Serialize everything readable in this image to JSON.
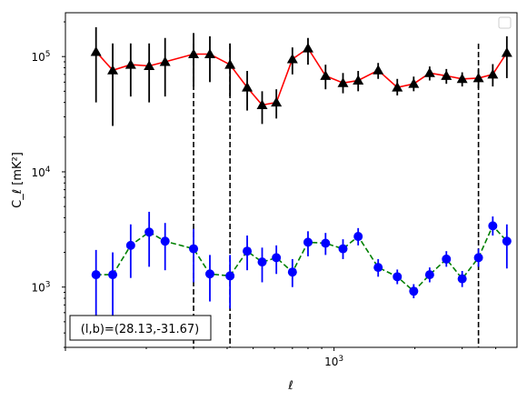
{
  "chart_data": {
    "type": "scatter",
    "xscale": "log",
    "yscale": "log",
    "xlim": [
      100,
      4800
    ],
    "ylim": [
      300,
      240000
    ],
    "xlabel": "ℓ",
    "ylabel": "C_ℓ  [mK²]",
    "x_tick_labels": [
      {
        "value": 1000,
        "base": "10",
        "exp": "3"
      }
    ],
    "y_tick_labels": [
      {
        "value": 1000,
        "base": "10",
        "exp": "3"
      },
      {
        "value": 10000,
        "base": "10",
        "exp": "4"
      },
      {
        "value": 100000,
        "base": "10",
        "exp": "5"
      }
    ],
    "annotation": "(l,b)=(28.13,-31.67)",
    "legend": "empty box, upper right",
    "vlines": [
      300,
      410,
      3450
    ],
    "series": [
      {
        "marker": "triangle",
        "marker_color": "#000000",
        "line_color": "#ff0000",
        "line_style": "solid",
        "points": [
          {
            "x": 130,
            "y": 110000,
            "lo": 40000,
            "hi": 180000
          },
          {
            "x": 150,
            "y": 76000,
            "lo": 25000,
            "hi": 130000
          },
          {
            "x": 175,
            "y": 85000,
            "lo": 45000,
            "hi": 130000
          },
          {
            "x": 205,
            "y": 83000,
            "lo": 40000,
            "hi": 130000
          },
          {
            "x": 235,
            "y": 90000,
            "lo": 45000,
            "hi": 145000
          },
          {
            "x": 300,
            "y": 105000,
            "lo": 55000,
            "hi": 160000
          },
          {
            "x": 345,
            "y": 105000,
            "lo": 60000,
            "hi": 150000
          },
          {
            "x": 410,
            "y": 85000,
            "lo": 45000,
            "hi": 130000
          },
          {
            "x": 475,
            "y": 54000,
            "lo": 34000,
            "hi": 75000
          },
          {
            "x": 540,
            "y": 38000,
            "lo": 26000,
            "hi": 50000
          },
          {
            "x": 610,
            "y": 40000,
            "lo": 29000,
            "hi": 52000
          },
          {
            "x": 700,
            "y": 95000,
            "lo": 70000,
            "hi": 120000
          },
          {
            "x": 800,
            "y": 118000,
            "lo": 85000,
            "hi": 145000
          },
          {
            "x": 930,
            "y": 68000,
            "lo": 52000,
            "hi": 85000
          },
          {
            "x": 1080,
            "y": 59000,
            "lo": 48000,
            "hi": 72000
          },
          {
            "x": 1230,
            "y": 62000,
            "lo": 50000,
            "hi": 75000
          },
          {
            "x": 1460,
            "y": 76000,
            "lo": 64000,
            "hi": 88000
          },
          {
            "x": 1720,
            "y": 54000,
            "lo": 46000,
            "hi": 64000
          },
          {
            "x": 1980,
            "y": 58000,
            "lo": 50000,
            "hi": 67000
          },
          {
            "x": 2270,
            "y": 72000,
            "lo": 62000,
            "hi": 82000
          },
          {
            "x": 2620,
            "y": 68000,
            "lo": 58000,
            "hi": 78000
          },
          {
            "x": 3000,
            "y": 64000,
            "lo": 55000,
            "hi": 73000
          },
          {
            "x": 3450,
            "y": 65000,
            "lo": 53000,
            "hi": 77000
          },
          {
            "x": 3900,
            "y": 70000,
            "lo": 55000,
            "hi": 86000
          },
          {
            "x": 4400,
            "y": 108000,
            "lo": 65000,
            "hi": 150000
          }
        ]
      },
      {
        "marker": "circle",
        "marker_color": "#0000ff",
        "line_color": "#008000",
        "line_style": "dashed",
        "points": [
          {
            "x": 130,
            "y": 1280,
            "lo": 550,
            "hi": 2100
          },
          {
            "x": 150,
            "y": 1280,
            "lo": 550,
            "hi": 2000
          },
          {
            "x": 175,
            "y": 2300,
            "lo": 1200,
            "hi": 3500
          },
          {
            "x": 205,
            "y": 3000,
            "lo": 1500,
            "hi": 4500
          },
          {
            "x": 235,
            "y": 2500,
            "lo": 1400,
            "hi": 3600
          },
          {
            "x": 300,
            "y": 2150,
            "lo": 1100,
            "hi": 3200
          },
          {
            "x": 345,
            "y": 1300,
            "lo": 750,
            "hi": 1900
          },
          {
            "x": 410,
            "y": 1250,
            "lo": 650,
            "hi": 1900
          },
          {
            "x": 475,
            "y": 2050,
            "lo": 1400,
            "hi": 2800
          },
          {
            "x": 540,
            "y": 1650,
            "lo": 1100,
            "hi": 2200
          },
          {
            "x": 610,
            "y": 1800,
            "lo": 1300,
            "hi": 2300
          },
          {
            "x": 700,
            "y": 1350,
            "lo": 1000,
            "hi": 1750
          },
          {
            "x": 800,
            "y": 2450,
            "lo": 1850,
            "hi": 3050
          },
          {
            "x": 930,
            "y": 2400,
            "lo": 1900,
            "hi": 2950
          },
          {
            "x": 1080,
            "y": 2150,
            "lo": 1750,
            "hi": 2600
          },
          {
            "x": 1230,
            "y": 2750,
            "lo": 2300,
            "hi": 3250
          },
          {
            "x": 1460,
            "y": 1480,
            "lo": 1230,
            "hi": 1750
          },
          {
            "x": 1720,
            "y": 1230,
            "lo": 1060,
            "hi": 1420
          },
          {
            "x": 1980,
            "y": 920,
            "lo": 800,
            "hi": 1060
          },
          {
            "x": 2270,
            "y": 1280,
            "lo": 1100,
            "hi": 1480
          },
          {
            "x": 2620,
            "y": 1750,
            "lo": 1500,
            "hi": 2050
          },
          {
            "x": 3000,
            "y": 1180,
            "lo": 1000,
            "hi": 1380
          },
          {
            "x": 3450,
            "y": 1800,
            "lo": 1500,
            "hi": 2150
          },
          {
            "x": 3900,
            "y": 3400,
            "lo": 2800,
            "hi": 4100
          },
          {
            "x": 4400,
            "y": 2500,
            "lo": 1450,
            "hi": 3500
          }
        ]
      }
    ]
  }
}
